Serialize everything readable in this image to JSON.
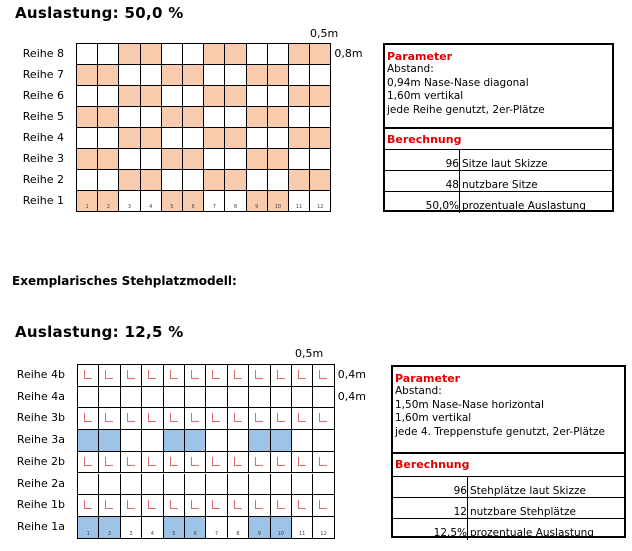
{
  "section1": {
    "title": "Auslastung: 50,0 %",
    "width_label": "0,5m",
    "height_labels": [
      "0,8m"
    ],
    "highlight_color": "#f8cbad",
    "column_numbers": [
      "1",
      "2",
      "3",
      "4",
      "5",
      "6",
      "7",
      "8",
      "9",
      "10",
      "11",
      "12"
    ],
    "rows": [
      {
        "label": "Reihe 8",
        "filled": [
          3,
          4,
          7,
          8,
          11,
          12
        ],
        "marks": false
      },
      {
        "label": "Reihe 7",
        "filled": [
          1,
          2,
          5,
          6,
          9,
          10
        ],
        "marks": false
      },
      {
        "label": "Reihe 6",
        "filled": [
          3,
          4,
          7,
          8,
          11,
          12
        ],
        "marks": false
      },
      {
        "label": "Reihe 5",
        "filled": [
          1,
          2,
          5,
          6,
          9,
          10
        ],
        "marks": false
      },
      {
        "label": "Reihe 4",
        "filled": [
          3,
          4,
          7,
          8,
          11,
          12
        ],
        "marks": false
      },
      {
        "label": "Reihe 3",
        "filled": [
          1,
          2,
          5,
          6,
          9,
          10
        ],
        "marks": false
      },
      {
        "label": "Reihe 2",
        "filled": [
          3,
          4,
          7,
          8,
          11,
          12
        ],
        "marks": false
      },
      {
        "label": "Reihe 1",
        "filled": [
          1,
          2,
          5,
          6,
          9,
          10
        ],
        "marks": false
      }
    ],
    "table": {
      "parameter_heading": "Parameter",
      "parameter_lines": [
        "Abstand:",
        "0,94m Nase-Nase diagonal",
        "1,60m vertikal",
        "jede Reihe genutzt, 2er-Plätze"
      ],
      "calc_heading": "Berechnung",
      "calc_rows": [
        {
          "value": "96",
          "text": "Sitze laut Skizze"
        },
        {
          "value": "48",
          "text": "nutzbare Sitze"
        },
        {
          "value": "50,0%",
          "text": "prozentuale Auslastung"
        }
      ]
    }
  },
  "subheading": "Exemplarisches Stehplatzmodell:",
  "section2": {
    "title": "Auslastung: 12,5 %",
    "width_label": "0,5m",
    "height_labels": [
      "0,4m",
      "0,4m"
    ],
    "highlight_color": "#9dc3e6",
    "column_numbers": [
      "1",
      "2",
      "3",
      "4",
      "5",
      "6",
      "7",
      "8",
      "9",
      "10",
      "11",
      "12"
    ],
    "rows": [
      {
        "label": "Reihe 4b",
        "filled": [],
        "marks": true
      },
      {
        "label": "Reihe 4a",
        "filled": [],
        "marks": false
      },
      {
        "label": "Reihe 3b",
        "filled": [],
        "marks": true
      },
      {
        "label": "Reihe 3a",
        "filled": [
          1,
          2,
          5,
          6,
          9,
          10
        ],
        "marks": false
      },
      {
        "label": "Reihe 2b",
        "filled": [],
        "marks": true
      },
      {
        "label": "Reihe 2a",
        "filled": [],
        "marks": false
      },
      {
        "label": "Reihe 1b",
        "filled": [],
        "marks": true
      },
      {
        "label": "Reihe 1a",
        "filled": [
          1,
          2,
          5,
          6,
          9,
          10
        ],
        "marks": false
      }
    ],
    "table": {
      "parameter_heading": "Parameter",
      "parameter_lines": [
        "Abstand:",
        "1,50m Nase-Nase horizontal",
        "1,60m vertikal",
        "jede 4. Treppenstufe genutzt, 2er-Plätze"
      ],
      "calc_heading": "Berechnung",
      "calc_rows": [
        {
          "value": "96",
          "text": "Stehplätze laut Skizze"
        },
        {
          "value": "12",
          "text": "nutzbare Stehplätze"
        },
        {
          "value": "12,5%",
          "text": "prozentuale Auslastung"
        }
      ]
    }
  }
}
